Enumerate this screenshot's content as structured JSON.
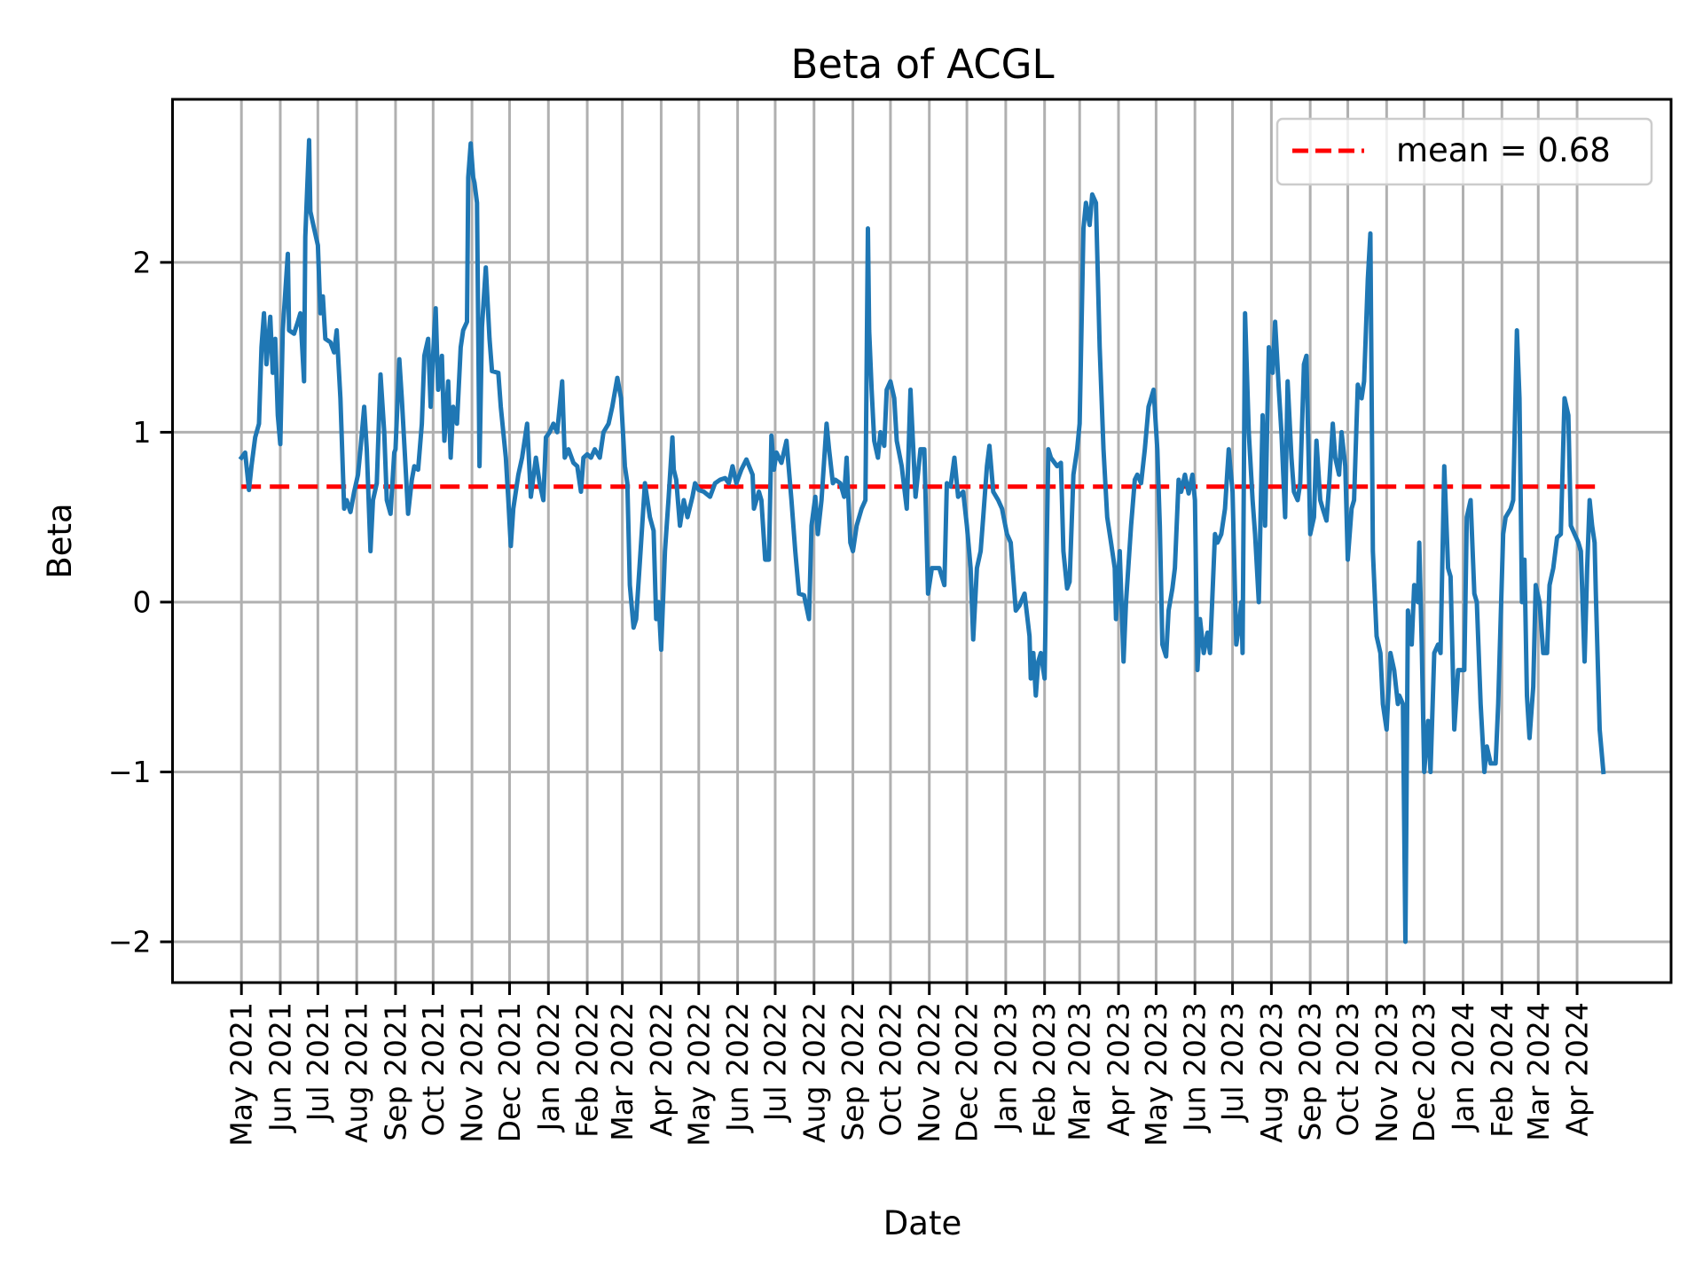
{
  "chart_data": {
    "type": "line",
    "title": "Beta of ACGL",
    "xlabel": "Date",
    "ylabel": "Beta",
    "xlim": [
      "2021-03-07",
      "2024-06-15"
    ],
    "ylim": [
      -2.24,
      2.96
    ],
    "grid": true,
    "legend_placement": "top-right",
    "x_ticks": [
      "2021-05-01",
      "2021-06-01",
      "2021-07-01",
      "2021-08-01",
      "2021-09-01",
      "2021-10-01",
      "2021-11-01",
      "2021-12-01",
      "2022-01-01",
      "2022-02-01",
      "2022-03-01",
      "2022-04-01",
      "2022-05-01",
      "2022-06-01",
      "2022-07-01",
      "2022-08-01",
      "2022-09-01",
      "2022-10-01",
      "2022-11-01",
      "2022-12-01",
      "2023-01-01",
      "2023-02-01",
      "2023-03-01",
      "2023-04-01",
      "2023-05-01",
      "2023-06-01",
      "2023-07-01",
      "2023-08-01",
      "2023-09-01",
      "2023-10-01",
      "2023-11-01",
      "2023-12-01",
      "2024-01-01",
      "2024-02-01",
      "2024-03-01",
      "2024-04-01"
    ],
    "x_tick_labels": [
      "May 2021",
      "Jun 2021",
      "Jul 2021",
      "Aug 2021",
      "Sep 2021",
      "Oct 2021",
      "Nov 2021",
      "Dec 2021",
      "Jan 2022",
      "Feb 2022",
      "Mar 2022",
      "Apr 2022",
      "May 2022",
      "Jun 2022",
      "Jul 2022",
      "Aug 2022",
      "Sep 2022",
      "Oct 2022",
      "Nov 2022",
      "Dec 2022",
      "Jan 2023",
      "Feb 2023",
      "Mar 2023",
      "Apr 2023",
      "May 2023",
      "Jun 2023",
      "Jul 2023",
      "Aug 2023",
      "Sep 2023",
      "Oct 2023",
      "Nov 2023",
      "Dec 2023",
      "Jan 2024",
      "Feb 2024",
      "Mar 2024",
      "Apr 2024"
    ],
    "y_ticks": [
      -2,
      -1,
      0,
      1,
      2
    ],
    "y_tick_labels": [
      "−2",
      "−1",
      "0",
      "1",
      "2"
    ],
    "mean": {
      "label": "mean = 0.68",
      "value": 0.68,
      "x_range": [
        "2021-05-01",
        "2024-04-22"
      ],
      "color": "#ff0000",
      "style": "dashed"
    },
    "series": [
      {
        "color": "#1f77b4",
        "x": [
          "2021-05-01",
          "2021-05-04",
          "2021-05-07",
          "2021-05-09",
          "2021-05-12",
          "2021-05-15",
          "2021-05-17",
          "2021-05-19",
          "2021-05-21",
          "2021-05-24",
          "2021-05-26",
          "2021-05-28",
          "2021-05-30",
          "2021-06-01",
          "2021-06-03",
          "2021-06-07",
          "2021-06-08",
          "2021-06-12",
          "2021-06-15",
          "2021-06-17",
          "2021-06-20",
          "2021-06-21",
          "2021-06-24",
          "2021-06-25",
          "2021-06-28",
          "2021-07-01",
          "2021-07-03",
          "2021-07-05",
          "2021-07-07",
          "2021-07-11",
          "2021-07-14",
          "2021-07-16",
          "2021-07-19",
          "2021-07-22",
          "2021-07-24",
          "2021-07-27",
          "2021-07-30",
          "2021-08-02",
          "2021-08-04",
          "2021-08-07",
          "2021-08-09",
          "2021-08-12",
          "2021-08-14",
          "2021-08-17",
          "2021-08-20",
          "2021-08-23",
          "2021-08-25",
          "2021-08-28",
          "2021-08-31",
          "2021-09-01",
          "2021-09-04",
          "2021-09-06",
          "2021-09-09",
          "2021-09-11",
          "2021-09-14",
          "2021-09-16",
          "2021-09-19",
          "2021-09-22",
          "2021-09-24",
          "2021-09-27",
          "2021-09-29",
          "2021-10-02",
          "2021-10-03",
          "2021-10-05",
          "2021-10-08",
          "2021-10-10",
          "2021-10-13",
          "2021-10-15",
          "2021-10-17",
          "2021-10-20",
          "2021-10-23",
          "2021-10-25",
          "2021-10-28",
          "2021-10-29",
          "2021-10-31",
          "2021-11-02",
          "2021-11-03",
          "2021-11-05",
          "2021-11-07",
          "2021-11-09",
          "2021-11-12",
          "2021-11-15",
          "2021-11-17",
          "2021-11-22",
          "2021-11-24",
          "2021-11-28",
          "2021-11-30",
          "2021-12-02",
          "2021-12-04",
          "2021-12-08",
          "2021-12-11",
          "2021-12-15",
          "2021-12-18",
          "2021-12-22",
          "2021-12-25",
          "2021-12-28",
          "2021-12-30",
          "2022-01-02",
          "2022-01-05",
          "2022-01-08",
          "2022-01-12",
          "2022-01-14",
          "2022-01-17",
          "2022-01-21",
          "2022-01-24",
          "2022-01-27",
          "2022-01-29",
          "2022-02-01",
          "2022-02-04",
          "2022-02-07",
          "2022-02-11",
          "2022-02-14",
          "2022-02-18",
          "2022-02-21",
          "2022-02-25",
          "2022-02-28",
          "2022-03-03",
          "2022-03-05",
          "2022-03-07",
          "2022-03-10",
          "2022-03-12",
          "2022-03-16",
          "2022-03-19",
          "2022-03-23",
          "2022-03-26",
          "2022-03-28",
          "2022-03-30",
          "2022-04-01",
          "2022-04-04",
          "2022-04-07",
          "2022-04-10",
          "2022-04-11",
          "2022-04-13",
          "2022-04-16",
          "2022-04-19",
          "2022-04-22",
          "2022-04-26",
          "2022-04-28",
          "2022-05-01",
          "2022-05-05",
          "2022-05-10",
          "2022-05-14",
          "2022-05-18",
          "2022-05-22",
          "2022-05-25",
          "2022-05-28",
          "2022-05-31",
          "2022-06-04",
          "2022-06-08",
          "2022-06-13",
          "2022-06-14",
          "2022-06-18",
          "2022-06-20",
          "2022-06-23",
          "2022-06-26",
          "2022-06-28",
          "2022-06-30",
          "2022-07-02",
          "2022-07-06",
          "2022-07-10",
          "2022-07-14",
          "2022-07-17",
          "2022-07-20",
          "2022-07-24",
          "2022-07-28",
          "2022-07-30",
          "2022-08-02",
          "2022-08-04",
          "2022-08-07",
          "2022-08-11",
          "2022-08-13",
          "2022-08-16",
          "2022-08-18",
          "2022-08-22",
          "2022-08-25",
          "2022-08-27",
          "2022-08-30",
          "2022-09-01",
          "2022-09-04",
          "2022-09-08",
          "2022-09-11",
          "2022-09-13",
          "2022-09-14",
          "2022-09-16",
          "2022-09-18",
          "2022-09-21",
          "2022-09-23",
          "2022-09-26",
          "2022-09-28",
          "2022-10-01",
          "2022-10-04",
          "2022-10-06",
          "2022-10-10",
          "2022-10-14",
          "2022-10-17",
          "2022-10-21",
          "2022-10-25",
          "2022-10-28",
          "2022-10-31",
          "2022-11-03",
          "2022-11-06",
          "2022-11-09",
          "2022-11-13",
          "2022-11-15",
          "2022-11-18",
          "2022-11-21",
          "2022-11-24",
          "2022-11-28",
          "2022-12-01",
          "2022-12-04",
          "2022-12-06",
          "2022-12-09",
          "2022-12-12",
          "2022-12-14",
          "2022-12-17",
          "2022-12-19",
          "2022-12-22",
          "2022-12-26",
          "2022-12-29",
          "2023-01-02",
          "2023-01-05",
          "2023-01-09",
          "2023-01-12",
          "2023-01-16",
          "2023-01-20",
          "2023-01-21",
          "2023-01-23",
          "2023-01-25",
          "2023-01-27",
          "2023-01-29",
          "2023-02-01",
          "2023-02-04",
          "2023-02-06",
          "2023-02-09",
          "2023-02-11",
          "2023-02-14",
          "2023-02-16",
          "2023-02-19",
          "2023-02-21",
          "2023-02-24",
          "2023-02-27",
          "2023-03-01",
          "2023-03-04",
          "2023-03-06",
          "2023-03-09",
          "2023-03-11",
          "2023-03-14",
          "2023-03-17",
          "2023-03-20",
          "2023-03-23",
          "2023-03-26",
          "2023-03-29",
          "2023-03-30",
          "2023-04-02",
          "2023-04-05",
          "2023-04-07",
          "2023-04-11",
          "2023-04-14",
          "2023-04-16",
          "2023-04-19",
          "2023-04-22",
          "2023-04-25",
          "2023-04-27",
          "2023-04-29",
          "2023-05-02",
          "2023-05-04",
          "2023-05-06",
          "2023-05-09",
          "2023-05-11",
          "2023-05-14",
          "2023-05-16",
          "2023-05-19",
          "2023-05-21",
          "2023-05-24",
          "2023-05-27",
          "2023-05-30",
          "2023-06-01",
          "2023-06-03",
          "2023-06-05",
          "2023-06-08",
          "2023-06-11",
          "2023-06-13",
          "2023-06-17",
          "2023-06-19",
          "2023-06-22",
          "2023-06-25",
          "2023-06-28",
          "2023-07-01",
          "2023-07-04",
          "2023-07-06",
          "2023-07-08",
          "2023-07-09",
          "2023-07-11",
          "2023-07-14",
          "2023-07-17",
          "2023-07-19",
          "2023-07-22",
          "2023-07-25",
          "2023-07-27",
          "2023-07-30",
          "2023-08-02",
          "2023-08-04",
          "2023-08-07",
          "2023-08-09",
          "2023-08-12",
          "2023-08-14",
          "2023-08-17",
          "2023-08-19",
          "2023-08-22",
          "2023-08-24",
          "2023-08-27",
          "2023-08-29",
          "2023-09-01",
          "2023-09-04",
          "2023-09-06",
          "2023-09-09",
          "2023-09-11",
          "2023-09-14",
          "2023-09-16",
          "2023-09-19",
          "2023-09-21",
          "2023-09-24",
          "2023-09-26",
          "2023-09-29",
          "2023-10-01",
          "2023-10-04",
          "2023-10-06",
          "2023-10-09",
          "2023-10-12",
          "2023-10-14",
          "2023-10-17",
          "2023-10-19",
          "2023-10-21",
          "2023-10-24",
          "2023-10-27",
          "2023-10-29",
          "2023-11-01",
          "2023-11-04",
          "2023-11-07",
          "2023-11-10",
          "2023-11-11",
          "2023-11-14",
          "2023-11-16",
          "2023-11-18",
          "2023-11-21",
          "2023-11-23",
          "2023-11-26",
          "2023-11-27",
          "2023-11-29",
          "2023-12-01",
          "2023-12-04",
          "2023-12-06",
          "2023-12-09",
          "2023-12-12",
          "2023-12-14",
          "2023-12-17",
          "2023-12-20",
          "2023-12-22",
          "2023-12-25",
          "2023-12-28",
          "2023-12-30",
          "2024-01-02",
          "2024-01-04",
          "2024-01-07",
          "2024-01-10",
          "2024-01-12",
          "2024-01-15",
          "2024-01-18",
          "2024-01-20",
          "2024-01-23",
          "2024-01-27",
          "2024-01-29",
          "2024-02-02",
          "2024-02-04",
          "2024-02-08",
          "2024-02-10",
          "2024-02-13",
          "2024-02-15",
          "2024-02-17",
          "2024-02-19",
          "2024-02-21",
          "2024-02-23",
          "2024-02-26",
          "2024-02-28",
          "2024-03-02",
          "2024-03-05",
          "2024-03-08",
          "2024-03-10",
          "2024-03-13",
          "2024-03-16",
          "2024-03-19",
          "2024-03-22",
          "2024-03-25",
          "2024-03-27",
          "2024-03-30",
          "2024-04-02",
          "2024-04-04",
          "2024-04-07",
          "2024-04-09",
          "2024-04-11",
          "2024-04-13",
          "2024-04-15",
          "2024-04-16",
          "2024-04-19",
          "2024-04-22"
        ],
        "y": [
          0.85,
          0.88,
          0.66,
          0.8,
          0.97,
          1.05,
          1.5,
          1.7,
          1.4,
          1.68,
          1.35,
          1.55,
          1.1,
          0.93,
          1.6,
          2.05,
          1.6,
          1.58,
          1.65,
          1.7,
          1.3,
          2.15,
          2.72,
          2.3,
          2.2,
          2.1,
          1.7,
          1.8,
          1.55,
          1.53,
          1.47,
          1.6,
          1.2,
          0.55,
          0.6,
          0.53,
          0.65,
          0.75,
          0.9,
          1.15,
          0.9,
          0.3,
          0.6,
          0.7,
          1.34,
          1.0,
          0.6,
          0.52,
          0.88,
          0.9,
          1.43,
          1.2,
          0.8,
          0.52,
          0.72,
          0.8,
          0.78,
          1.05,
          1.45,
          1.55,
          1.15,
          1.6,
          1.73,
          1.25,
          1.45,
          0.95,
          1.3,
          0.85,
          1.15,
          1.05,
          1.5,
          1.6,
          1.65,
          2.5,
          2.7,
          2.5,
          2.47,
          2.35,
          0.8,
          1.62,
          1.97,
          1.55,
          1.36,
          1.35,
          1.15,
          0.85,
          0.6,
          0.33,
          0.55,
          0.75,
          0.85,
          1.05,
          0.62,
          0.85,
          0.7,
          0.6,
          0.97,
          1.0,
          1.05,
          1.0,
          1.3,
          0.85,
          0.9,
          0.82,
          0.8,
          0.65,
          0.85,
          0.87,
          0.85,
          0.9,
          0.85,
          1.0,
          1.05,
          1.15,
          1.32,
          1.2,
          0.8,
          0.7,
          0.1,
          -0.15,
          -0.1,
          0.35,
          0.7,
          0.5,
          0.42,
          -0.1,
          0.0,
          -0.28,
          0.3,
          0.62,
          0.97,
          0.78,
          0.72,
          0.45,
          0.6,
          0.5,
          0.62,
          0.7,
          0.66,
          0.65,
          0.62,
          0.7,
          0.72,
          0.73,
          0.7,
          0.8,
          0.7,
          0.78,
          0.84,
          0.75,
          0.55,
          0.65,
          0.6,
          0.25,
          0.25,
          0.98,
          0.78,
          0.88,
          0.82,
          0.95,
          0.6,
          0.3,
          0.05,
          0.04,
          -0.1,
          0.45,
          0.62,
          0.4,
          0.6,
          1.05,
          0.9,
          0.7,
          0.72,
          0.7,
          0.62,
          0.85,
          0.35,
          0.3,
          0.45,
          0.55,
          0.6,
          2.2,
          1.6,
          1.25,
          0.95,
          0.85,
          1.0,
          0.92,
          1.25,
          1.3,
          1.2,
          0.95,
          0.8,
          0.55,
          1.25,
          0.62,
          0.9,
          0.9,
          0.05,
          0.2,
          0.2,
          0.2,
          0.1,
          0.7,
          0.68,
          0.85,
          0.62,
          0.65,
          0.45,
          0.2,
          -0.22,
          0.2,
          0.3,
          0.5,
          0.8,
          0.92,
          0.65,
          0.6,
          0.55,
          0.4,
          0.35,
          -0.05,
          -0.02,
          0.05,
          -0.2,
          -0.45,
          -0.3,
          -0.55,
          -0.35,
          -0.3,
          -0.45,
          0.9,
          0.85,
          0.82,
          0.8,
          0.82,
          0.3,
          0.08,
          0.12,
          0.75,
          0.9,
          1.05,
          2.2,
          2.35,
          2.22,
          2.4,
          2.35,
          1.5,
          0.9,
          0.5,
          0.35,
          0.2,
          -0.1,
          0.3,
          -0.35,
          0.0,
          0.45,
          0.72,
          0.75,
          0.7,
          0.9,
          1.15,
          1.2,
          1.25,
          0.9,
          0.45,
          -0.25,
          -0.32,
          -0.05,
          0.08,
          0.2,
          0.72,
          0.65,
          0.75,
          0.64,
          0.75,
          0.6,
          -0.4,
          -0.1,
          -0.3,
          -0.18,
          -0.3,
          0.4,
          0.35,
          0.4,
          0.55,
          0.9,
          0.65,
          -0.25,
          -0.15,
          0.0,
          -0.3,
          1.7,
          1.0,
          0.6,
          0.4,
          0.0,
          1.1,
          0.45,
          1.5,
          1.35,
          1.65,
          1.25,
          1.0,
          0.5,
          1.3,
          0.85,
          0.65,
          0.6,
          0.7,
          1.4,
          1.45,
          0.4,
          0.5,
          0.95,
          0.6,
          0.55,
          0.48,
          0.68,
          1.05,
          0.85,
          0.75,
          1.0,
          0.8,
          0.25,
          0.55,
          0.6,
          1.28,
          1.2,
          1.3,
          1.9,
          2.17,
          0.3,
          -0.2,
          -0.3,
          -0.6,
          -0.75,
          -0.3,
          -0.4,
          -0.6,
          -0.55,
          -0.6,
          -2.0,
          -0.05,
          -0.25,
          0.1,
          0.0,
          0.35,
          -0.25,
          -1.0,
          -0.7,
          -1.0,
          -0.3,
          -0.25,
          -0.3,
          0.8,
          0.2,
          0.15,
          -0.75,
          -0.4,
          -0.4,
          -0.4,
          0.5,
          0.6,
          0.05,
          0.0,
          -0.6,
          -1.0,
          -0.85,
          -0.95,
          -0.95,
          -0.6,
          0.4,
          0.5,
          0.55,
          0.6,
          1.6,
          1.2,
          0.0,
          0.25,
          -0.55,
          -0.8,
          -0.5,
          0.1,
          0.0,
          -0.3,
          -0.3,
          0.1,
          0.2,
          0.38,
          0.4,
          1.2,
          1.1,
          0.45,
          0.4,
          0.35,
          0.3,
          -0.35,
          0.2,
          0.6,
          0.45,
          0.35,
          0.05,
          -0.75,
          -1.0
        ]
      }
    ]
  }
}
